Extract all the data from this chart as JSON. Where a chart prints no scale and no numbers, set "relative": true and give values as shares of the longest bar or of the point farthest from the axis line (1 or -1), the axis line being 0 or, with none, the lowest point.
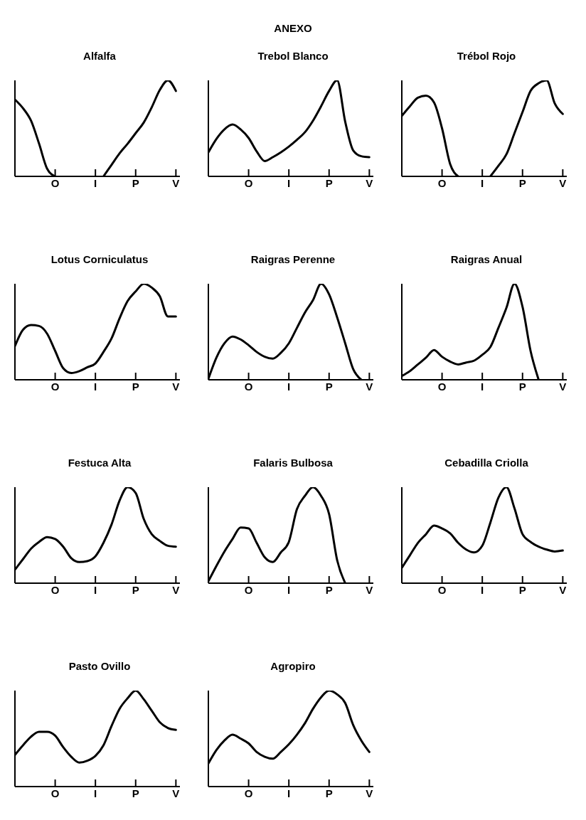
{
  "chart_data": [
    {
      "type": "line",
      "title": "Alfalfa",
      "relative": true,
      "color": "#000000",
      "marker": "none",
      "categories": [
        null,
        null,
        null,
        null,
        null,
        "O",
        null,
        null,
        null,
        null,
        "I",
        null,
        null,
        null,
        null,
        "P",
        null,
        null,
        null,
        null,
        "V"
      ],
      "values": [
        0.8,
        0.71,
        0.58,
        0.34,
        0.08,
        0,
        null,
        null,
        null,
        null,
        null,
        0,
        0.12,
        0.24,
        0.34,
        0.45,
        0.56,
        0.72,
        0.9,
        1,
        0.89
      ]
    },
    {
      "type": "line",
      "title": "Trebol Blanco",
      "annotations": [
        "ANEXO"
      ],
      "relative": true,
      "color": "#000000",
      "marker": "none",
      "categories": [
        null,
        null,
        null,
        null,
        null,
        "O",
        null,
        null,
        null,
        null,
        "I",
        null,
        null,
        null,
        null,
        "P",
        null,
        null,
        null,
        null,
        "V"
      ],
      "values": [
        0.25,
        0.39,
        0.49,
        0.54,
        0.49,
        0.4,
        0.26,
        0.16,
        0.2,
        0.25,
        0.31,
        0.38,
        0.46,
        0.58,
        0.73,
        0.89,
        1,
        0.57,
        0.27,
        0.21,
        0.2
      ]
    },
    {
      "type": "line",
      "title": "Trébol Rojo",
      "relative": true,
      "color": "#000000",
      "marker": "none",
      "categories": [
        null,
        null,
        null,
        null,
        null,
        "O",
        null,
        null,
        null,
        null,
        "I",
        null,
        null,
        null,
        null,
        "P",
        null,
        null,
        null,
        null,
        "V"
      ],
      "values": [
        0.63,
        0.73,
        0.82,
        0.84,
        0.77,
        0.5,
        0.13,
        0,
        null,
        null,
        null,
        0,
        0.11,
        0.23,
        0.45,
        0.67,
        0.89,
        0.97,
        1,
        0.76,
        0.65
      ]
    },
    {
      "type": "line",
      "title": "Lotus Corniculatus",
      "relative": true,
      "color": "#000000",
      "marker": "none",
      "categories": [
        null,
        null,
        null,
        null,
        null,
        "O",
        null,
        null,
        null,
        null,
        "I",
        null,
        null,
        null,
        null,
        "P",
        null,
        null,
        null,
        null,
        "V"
      ],
      "values": [
        0.35,
        0.52,
        0.57,
        0.56,
        0.48,
        0.3,
        0.12,
        0.07,
        0.09,
        0.13,
        0.17,
        0.29,
        0.43,
        0.64,
        0.82,
        0.92,
        1,
        0.96,
        0.87,
        0.66,
        0.66
      ]
    },
    {
      "type": "line",
      "title": "Raigras Perenne",
      "relative": true,
      "color": "#000000",
      "marker": "none",
      "categories": [
        null,
        null,
        null,
        null,
        null,
        "O",
        null,
        null,
        null,
        null,
        "I",
        null,
        null,
        null,
        null,
        "P",
        null,
        null,
        null,
        null,
        "V"
      ],
      "values": [
        0.01,
        0.23,
        0.38,
        0.45,
        0.42,
        0.36,
        0.29,
        0.24,
        0.22,
        0.28,
        0.38,
        0.54,
        0.7,
        0.83,
        1,
        0.89,
        0.65,
        0.38,
        0.11,
        0,
        null
      ]
    },
    {
      "type": "line",
      "title": "Raigras Anual",
      "relative": true,
      "color": "#000000",
      "marker": "none",
      "categories": [
        null,
        null,
        null,
        null,
        null,
        "O",
        null,
        null,
        null,
        null,
        "I",
        null,
        null,
        null,
        null,
        "P",
        null,
        null,
        null,
        null,
        "V"
      ],
      "values": [
        0.04,
        0.09,
        0.16,
        0.23,
        0.31,
        0.24,
        0.19,
        0.16,
        0.18,
        0.2,
        0.26,
        0.34,
        0.54,
        0.75,
        1,
        0.76,
        0.3,
        0,
        null,
        null,
        null
      ]
    },
    {
      "type": "line",
      "title": "Festuca Alta",
      "relative": true,
      "color": "#000000",
      "marker": "none",
      "categories": [
        null,
        null,
        null,
        null,
        null,
        "O",
        null,
        null,
        null,
        null,
        "I",
        null,
        null,
        null,
        null,
        "P",
        null,
        null,
        null,
        null,
        "V"
      ],
      "values": [
        0.14,
        0.25,
        0.36,
        0.43,
        0.48,
        0.46,
        0.38,
        0.26,
        0.22,
        0.23,
        0.28,
        0.42,
        0.61,
        0.86,
        1,
        0.94,
        0.67,
        0.51,
        0.44,
        0.39,
        0.38
      ]
    },
    {
      "type": "line",
      "title": "Falaris Bulbosa",
      "relative": true,
      "color": "#000000",
      "marker": "none",
      "categories": [
        null,
        null,
        null,
        null,
        null,
        "O",
        null,
        null,
        null,
        null,
        "I",
        null,
        null,
        null,
        null,
        "P",
        null,
        null,
        null,
        null,
        "V"
      ],
      "values": [
        0.02,
        0.18,
        0.33,
        0.46,
        0.58,
        0.57,
        0.42,
        0.27,
        0.22,
        0.32,
        0.43,
        0.77,
        0.91,
        1,
        0.91,
        0.72,
        0.24,
        0,
        null,
        null,
        null
      ]
    },
    {
      "type": "line",
      "title": "Cebadilla Criolla",
      "relative": true,
      "color": "#000000",
      "marker": "none",
      "categories": [
        null,
        null,
        null,
        null,
        null,
        "O",
        null,
        null,
        null,
        null,
        "I",
        null,
        null,
        null,
        null,
        "P",
        null,
        null,
        null,
        null,
        "V"
      ],
      "values": [
        0.16,
        0.29,
        0.42,
        0.51,
        0.6,
        0.57,
        0.52,
        0.42,
        0.35,
        0.32,
        0.39,
        0.63,
        0.89,
        1,
        0.78,
        0.51,
        0.43,
        0.38,
        0.35,
        0.33,
        0.34
      ]
    },
    {
      "type": "line",
      "title": "Pasto Ovillo",
      "relative": true,
      "color": "#000000",
      "marker": "none",
      "categories": [
        null,
        null,
        null,
        null,
        null,
        "O",
        null,
        null,
        null,
        null,
        "I",
        null,
        null,
        null,
        null,
        "P",
        null,
        null,
        null,
        null,
        "V"
      ],
      "values": [
        0.33,
        0.43,
        0.52,
        0.57,
        0.57,
        0.53,
        0.41,
        0.31,
        0.25,
        0.27,
        0.32,
        0.43,
        0.63,
        0.81,
        0.92,
        1,
        0.91,
        0.79,
        0.67,
        0.61,
        0.59
      ]
    },
    {
      "type": "line",
      "title": "Agropiro",
      "relative": true,
      "color": "#000000",
      "marker": "none",
      "categories": [
        null,
        null,
        null,
        null,
        null,
        "O",
        null,
        null,
        null,
        null,
        "I",
        null,
        null,
        null,
        null,
        "P",
        null,
        null,
        null,
        null,
        "V"
      ],
      "values": [
        0.24,
        0.38,
        0.48,
        0.54,
        0.5,
        0.45,
        0.36,
        0.31,
        0.29,
        0.36,
        0.44,
        0.54,
        0.66,
        0.81,
        0.93,
        1,
        0.96,
        0.87,
        0.64,
        0.48,
        0.36
      ]
    }
  ]
}
